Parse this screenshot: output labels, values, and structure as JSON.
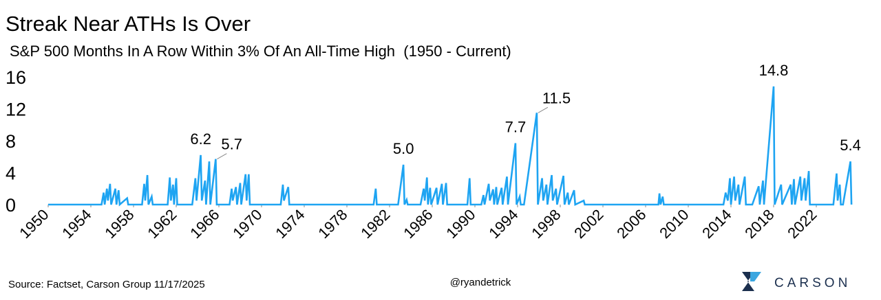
{
  "chart_data": {
    "type": "line",
    "title": "Streak Near ATHs Is Over",
    "subtitle": "S&P 500 Months In A Row Within 3% Of An All-Time High  (1950 - Current)",
    "color": "#1ea4f2",
    "x": [
      1950,
      1955.0,
      1955.2,
      1955.3,
      1955.5,
      1955.6,
      1955.8,
      1955.9,
      1956.3,
      1956.4,
      1956.6,
      1956.7,
      1957.4,
      1957.5,
      1958.8,
      1959.0,
      1959.1,
      1959.3,
      1959.4,
      1959.7,
      1959.8,
      1961.2,
      1961.4,
      1961.5,
      1961.7,
      1961.8,
      1962.0,
      1962.1,
      1963.5,
      1963.8,
      1963.9,
      1964.3,
      1964.4,
      1964.7,
      1964.8,
      1965.1,
      1965.2,
      1965.7,
      1965.8,
      1967.0,
      1967.2,
      1967.3,
      1967.6,
      1967.7,
      1968.0,
      1968.1,
      1968.5,
      1968.6,
      1968.8,
      1968.9,
      1971.8,
      1972.0,
      1972.1,
      1972.5,
      1972.6,
      1980.5,
      1980.7,
      1980.8,
      1982.8,
      1983.3,
      1983.4,
      1983.6,
      1983.7,
      1984.9,
      1985.2,
      1985.3,
      1985.5,
      1985.6,
      1985.8,
      1985.9,
      1986.4,
      1986.5,
      1986.9,
      1987.0,
      1987.3,
      1987.4,
      1989.3,
      1989.5,
      1989.6,
      1990.6,
      1990.8,
      1990.9,
      1991.3,
      1991.4,
      1991.7,
      1991.8,
      1992.0,
      1992.1,
      1992.5,
      1992.6,
      1993.0,
      1993.1,
      1993.8,
      1993.9,
      1994.2,
      1994.3,
      1994.6,
      1995.8,
      1995.9,
      1996.3,
      1996.4,
      1996.7,
      1996.8,
      1997.2,
      1997.3,
      1997.6,
      1997.7,
      1998.3,
      1998.4,
      1998.7,
      1998.8,
      1999.3,
      1999.4,
      2000.2,
      2000.3,
      2007.2,
      2007.3,
      2007.4,
      2007.6,
      2007.7,
      2013.3,
      2013.5,
      2013.7,
      2013.9,
      2014.0,
      2014.3,
      2014.4,
      2014.7,
      2014.8,
      2015.3,
      2015.4,
      2016.0,
      2016.6,
      2016.7,
      2017.0,
      2017.1,
      2018.0,
      2018.1,
      2018.7,
      2018.8,
      2019.6,
      2019.7,
      2019.9,
      2020.0,
      2020.5,
      2020.6,
      2020.9,
      2021.0,
      2021.3,
      2021.4,
      2023.6,
      2023.9,
      2024.0,
      2024.2,
      2024.3,
      2024.5,
      2025.2,
      2025.3
    ],
    "values": [
      0,
      0,
      1.5,
      0,
      2,
      0.5,
      2.6,
      0,
      2,
      0,
      1.8,
      0,
      0.8,
      0,
      0,
      2.6,
      0.5,
      3.7,
      0,
      1,
      0,
      0,
      3.4,
      0.5,
      2.5,
      0,
      3.3,
      0,
      0,
      3.3,
      0.5,
      6.2,
      0.5,
      3,
      0,
      5.4,
      0,
      5.7,
      0,
      0,
      2,
      0.5,
      2.2,
      0,
      2.7,
      0,
      3.8,
      0.5,
      3.8,
      0,
      0,
      2.5,
      0.5,
      2.2,
      0,
      0,
      2,
      0,
      0,
      5,
      0,
      0.6,
      0,
      0,
      2,
      0.5,
      3.4,
      0,
      2.1,
      0,
      2.1,
      0,
      2.6,
      0,
      2.7,
      0,
      0,
      3.3,
      0,
      0,
      1.2,
      0,
      2.6,
      0.5,
      1.9,
      0,
      2.2,
      0,
      2.1,
      0,
      3.5,
      0,
      7.7,
      0,
      1,
      0,
      0,
      11.5,
      0,
      3.3,
      0.5,
      2.5,
      0,
      3.7,
      0.5,
      2,
      0,
      3.6,
      0,
      1.5,
      0,
      1.8,
      0,
      0.5,
      0,
      0,
      1.4,
      0,
      1,
      0,
      0,
      1.5,
      0.5,
      3.3,
      0,
      3.5,
      0.5,
      2.5,
      0,
      3.5,
      0,
      0,
      2.3,
      0,
      3,
      0,
      14.8,
      0,
      2.5,
      0,
      2.5,
      0,
      3.2,
      0,
      3.5,
      0.5,
      3.3,
      0.5,
      4.2,
      0,
      0,
      3.9,
      0.5,
      2.5,
      0,
      0,
      5.4,
      0
    ],
    "annotations": [
      {
        "x": 1964.3,
        "y": 6.2,
        "label": "6.2"
      },
      {
        "x": 1965.7,
        "y": 5.7,
        "label": "5.7"
      },
      {
        "x": 1983.3,
        "y": 5,
        "label": "5.0"
      },
      {
        "x": 1993.8,
        "y": 7.7,
        "label": "7.7"
      },
      {
        "x": 1995.8,
        "y": 11.5,
        "label": "11.5"
      },
      {
        "x": 2018.0,
        "y": 14.8,
        "label": "14.8"
      },
      {
        "x": 2025.2,
        "y": 5.4,
        "label": "5.4"
      }
    ],
    "xlim": [
      1950,
      2026
    ],
    "xticks": [
      1950,
      1954,
      1958,
      1962,
      1966,
      1970,
      1974,
      1978,
      1982,
      1986,
      1990,
      1994,
      1998,
      2002,
      2006,
      2010,
      2014,
      2018,
      2022
    ],
    "ylim": [
      0,
      16
    ],
    "yticks": [
      0,
      4,
      8,
      12,
      16
    ],
    "grid": false
  },
  "source": "Source: Factset, Carson Group 11/17/2025",
  "credit": "@ryandetrick",
  "logo": "CARSON"
}
